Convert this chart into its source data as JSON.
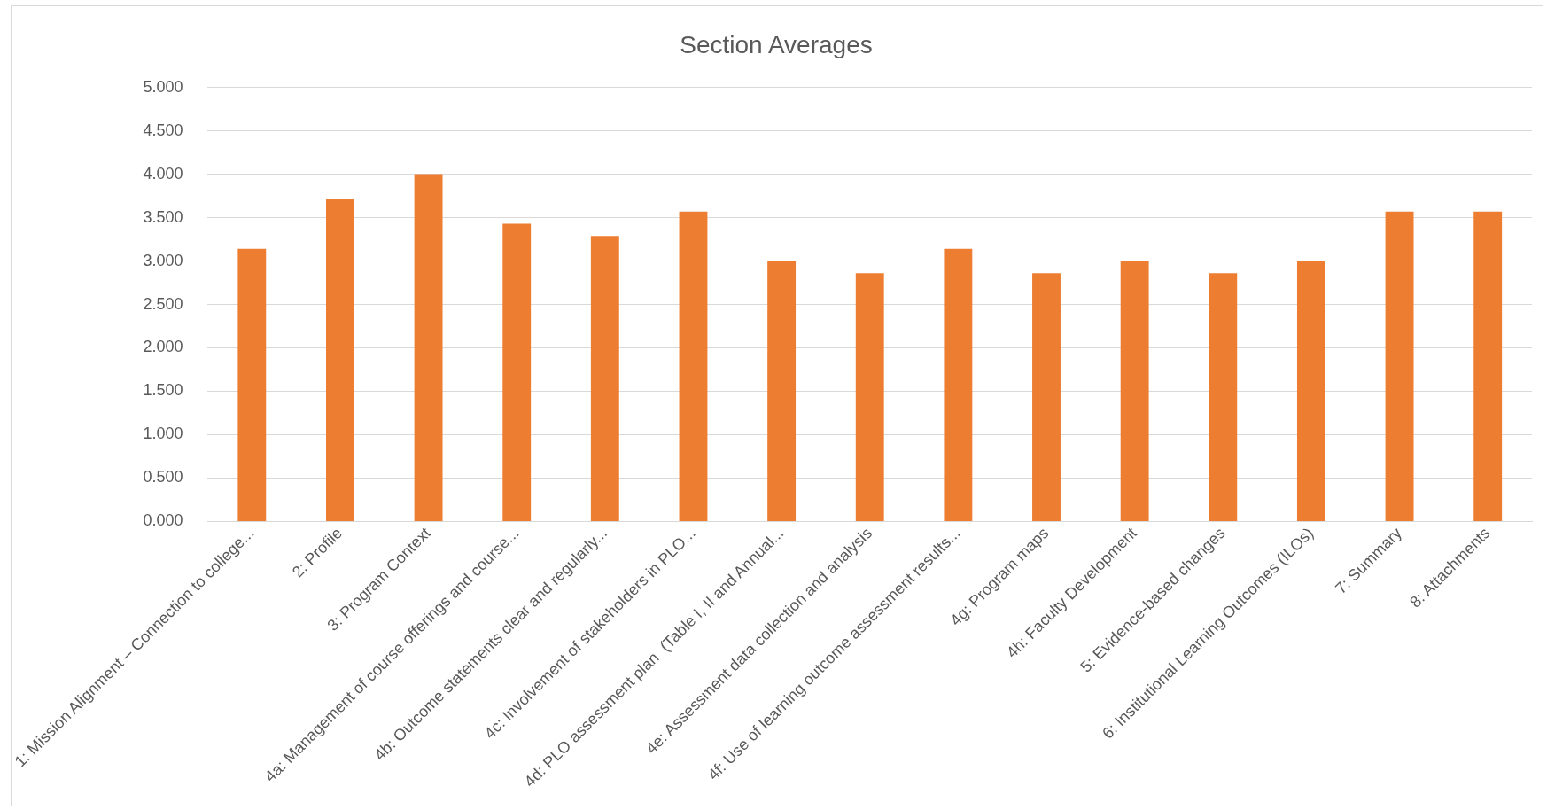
{
  "chart_data": {
    "type": "bar",
    "title": "Section Averages",
    "categories": [
      "1: Mission Alignment – Connection to college...",
      "2: Profile",
      "3: Program Context",
      "4a: Management of course offerings and course...",
      "4b: Outcome statements clear and regularly...",
      "4c: Involvement of stakeholders in PLO...",
      "4d: PLO assessment plan  (Table I, II and Annual...",
      "4e: Assessment data collection and analysis",
      "4f: Use of learning outcome assessment results...",
      "4g: Program maps",
      "4h: Faculty Development",
      "5: Evidence-based changes",
      "6: Institutional Learning Outcomes (ILOs)",
      "7: Summary",
      "8: Attachments"
    ],
    "values": [
      3.14,
      3.71,
      4.0,
      3.43,
      3.29,
      3.57,
      3.0,
      2.86,
      3.14,
      2.86,
      3.0,
      2.86,
      3.0,
      3.57,
      3.57
    ],
    "color": "#ed7d31",
    "ylim": [
      0,
      5
    ],
    "yticks": [
      {
        "value": 0,
        "label": "0.000"
      },
      {
        "value": 0.5,
        "label": "0.500"
      },
      {
        "value": 1,
        "label": "1.000"
      },
      {
        "value": 1.5,
        "label": "1.500"
      },
      {
        "value": 2,
        "label": "2.000"
      },
      {
        "value": 2.5,
        "label": "2.500"
      },
      {
        "value": 3,
        "label": "3.000"
      },
      {
        "value": 3.5,
        "label": "3.500"
      },
      {
        "value": 4,
        "label": "4.000"
      },
      {
        "value": 4.5,
        "label": "4.500"
      },
      {
        "value": 5,
        "label": "5.000"
      }
    ],
    "grid": "y"
  }
}
